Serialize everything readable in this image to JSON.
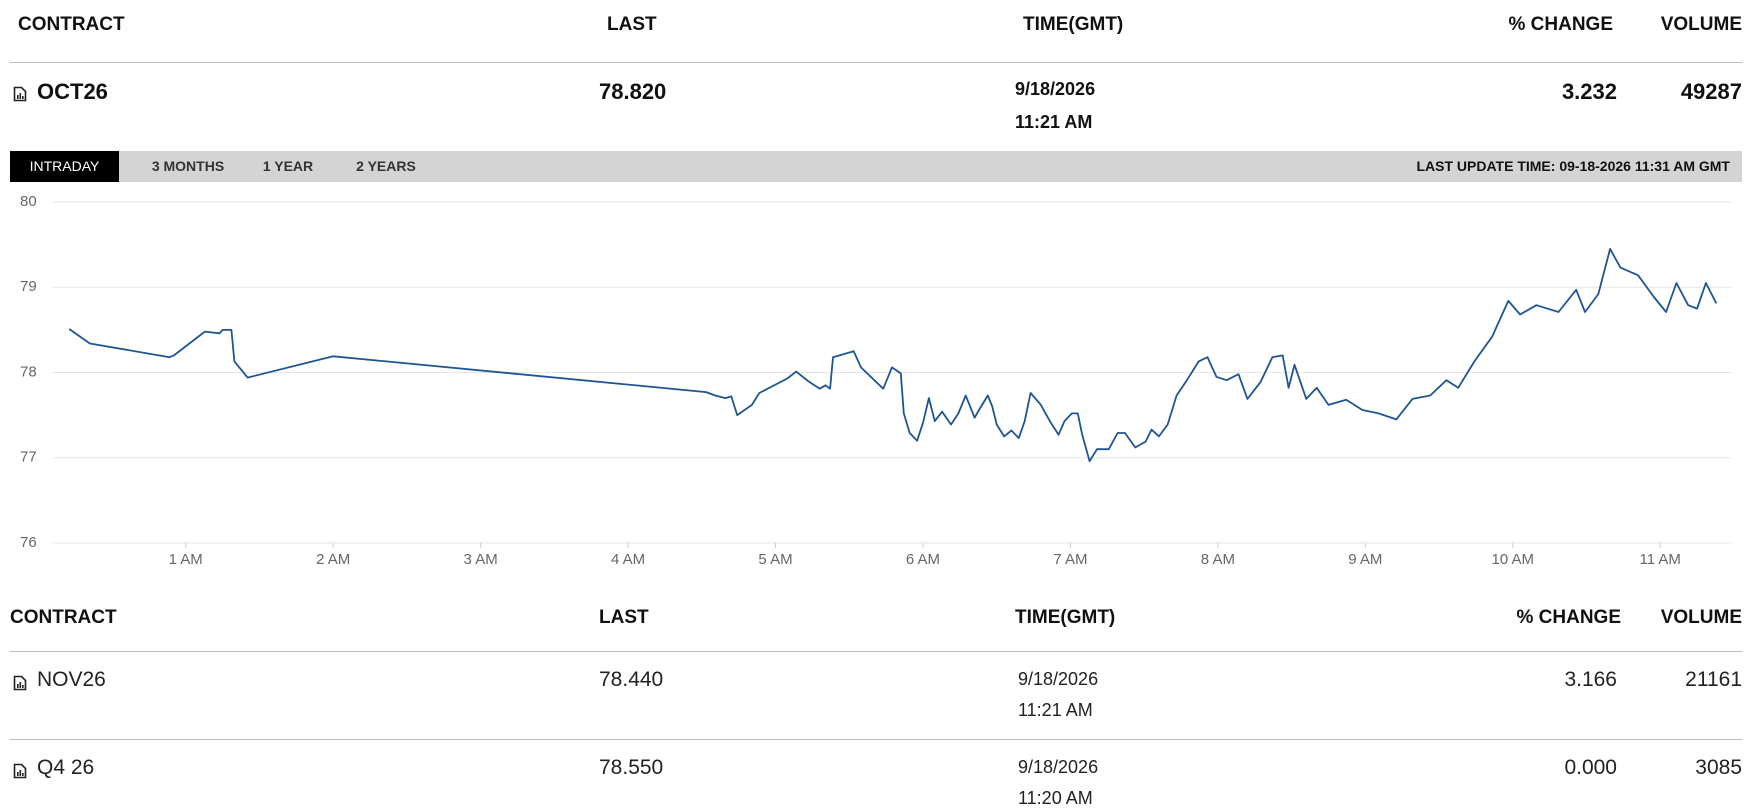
{
  "header": {
    "columns": [
      "CONTRACT",
      "LAST",
      "TIME(GMT)",
      "% CHANGE",
      "VOLUME"
    ]
  },
  "main": {
    "contract": "OCT26",
    "last": "78.820",
    "date": "9/18/2026",
    "time": "11:21 AM",
    "change": "3.232",
    "volume": "49287"
  },
  "tabs": [
    "INTRADAY",
    "3 MONTHS",
    "1 YEAR",
    "2 YEARS"
  ],
  "last_update": "LAST UPDATE TIME: 09-18-2026 11:31 AM GMT",
  "chart_data": {
    "type": "line",
    "color": "#1f5592",
    "x": [
      0.21,
      0.35,
      0.89,
      0.92,
      1.13,
      1.23,
      1.25,
      1.31,
      1.33,
      1.42,
      2.0,
      4.53,
      4.59,
      4.66,
      4.7,
      4.74,
      4.84,
      4.89,
      5.08,
      5.14,
      5.22,
      5.3,
      5.34,
      5.37,
      5.39,
      5.53,
      5.58,
      5.73,
      5.79,
      5.85,
      5.87,
      5.91,
      5.96,
      6.0,
      6.04,
      6.08,
      6.13,
      6.19,
      6.24,
      6.29,
      6.35,
      6.38,
      6.44,
      6.47,
      6.5,
      6.55,
      6.6,
      6.65,
      6.69,
      6.73,
      6.8,
      6.86,
      6.92,
      6.96,
      7.01,
      7.05,
      7.08,
      7.13,
      7.18,
      7.26,
      7.32,
      7.37,
      7.44,
      7.51,
      7.55,
      7.6,
      7.66,
      7.72,
      7.79,
      7.87,
      7.93,
      7.99,
      8.06,
      8.14,
      8.2,
      8.29,
      8.37,
      8.44,
      8.48,
      8.52,
      8.6,
      8.67,
      8.75,
      8.87,
      8.98,
      9.09,
      9.21,
      9.32,
      9.44,
      9.55,
      9.63,
      9.74,
      9.86,
      9.97,
      10.05,
      10.16,
      10.31,
      10.43,
      10.49,
      10.58,
      10.66,
      10.73,
      10.85,
      10.96,
      11.04,
      11.11,
      11.19,
      11.25,
      11.31,
      11.38
    ],
    "values": [
      78.51,
      78.34,
      78.18,
      78.2,
      78.48,
      78.46,
      78.5,
      78.5,
      78.13,
      77.94,
      78.19,
      77.77,
      77.73,
      77.7,
      77.72,
      77.5,
      77.62,
      77.76,
      77.93,
      78.01,
      77.9,
      77.81,
      77.85,
      77.81,
      78.18,
      78.25,
      78.06,
      77.81,
      78.06,
      77.99,
      77.52,
      77.29,
      77.2,
      77.41,
      77.7,
      77.43,
      77.54,
      77.39,
      77.52,
      77.73,
      77.47,
      77.56,
      77.73,
      77.6,
      77.39,
      77.25,
      77.32,
      77.23,
      77.43,
      77.76,
      77.62,
      77.43,
      77.27,
      77.43,
      77.52,
      77.52,
      77.27,
      76.96,
      77.1,
      77.1,
      77.29,
      77.29,
      77.12,
      77.19,
      77.33,
      77.25,
      77.39,
      77.73,
      77.91,
      78.13,
      78.18,
      77.95,
      77.91,
      77.98,
      77.69,
      77.89,
      78.18,
      78.2,
      77.82,
      78.09,
      77.69,
      77.82,
      77.62,
      77.68,
      77.56,
      77.52,
      77.45,
      77.69,
      77.73,
      77.91,
      77.82,
      78.13,
      78.42,
      78.84,
      78.68,
      78.79,
      78.71,
      78.97,
      78.71,
      78.92,
      79.45,
      79.23,
      79.14,
      78.88,
      78.71,
      79.05,
      78.79,
      78.75,
      79.05,
      78.81
    ],
    "xlim": [
      0.1,
      11.48
    ],
    "xticks": [
      {
        "value": 1,
        "label": "1 AM"
      },
      {
        "value": 2,
        "label": "2 AM"
      },
      {
        "value": 3,
        "label": "3 AM"
      },
      {
        "value": 4,
        "label": "4 AM"
      },
      {
        "value": 5,
        "label": "5 AM"
      },
      {
        "value": 6,
        "label": "6 AM"
      },
      {
        "value": 7,
        "label": "7 AM"
      },
      {
        "value": 8,
        "label": "8 AM"
      },
      {
        "value": 9,
        "label": "9 AM"
      },
      {
        "value": 10,
        "label": "10 AM"
      },
      {
        "value": 11,
        "label": "11 AM"
      }
    ],
    "ylim": [
      76,
      80
    ],
    "yticks": [
      76,
      77,
      78,
      79,
      80
    ],
    "grid": true
  },
  "table": {
    "columns": [
      "CONTRACT",
      "LAST",
      "TIME(GMT)",
      "% CHANGE",
      "VOLUME"
    ],
    "rows": [
      [
        "NOV26",
        "78.440",
        "9/18/2026",
        "11:21 AM",
        "3.166",
        "21161"
      ],
      [
        "Q4 26",
        "78.550",
        "9/18/2026",
        "11:20 AM",
        "0.000",
        "3085"
      ]
    ]
  }
}
